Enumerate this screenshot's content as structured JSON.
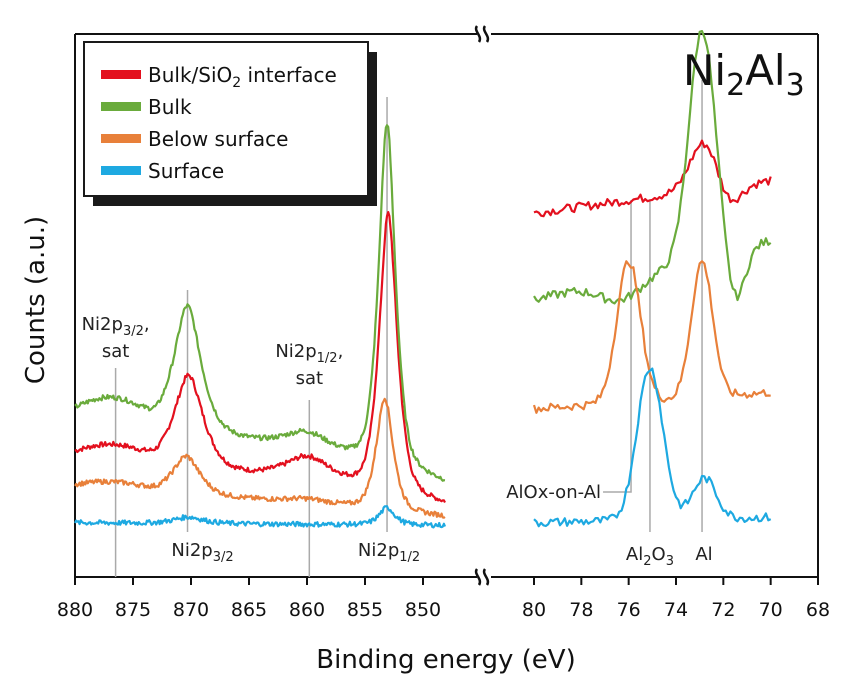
{
  "chart_data": {
    "type": "line",
    "title": "Ni2Al3",
    "title_parts": {
      "base1": "Ni",
      "sub1": "2",
      "base2": "Al",
      "sub2": "3"
    },
    "xlabel": "Binding energy (eV)",
    "ylabel": "Counts (a.u.)",
    "ylim": [
      0,
      100
    ],
    "grid": false,
    "legend_position": "top-left",
    "panels": [
      {
        "name": "Ni2p",
        "xlim": [
          880,
          848
        ],
        "axis_range": [
          880,
          850
        ],
        "ticks": [
          880,
          875,
          870,
          865,
          860,
          855,
          850
        ],
        "tick_labels": [
          "880",
          "875",
          "870",
          "865",
          "860",
          "855",
          "850"
        ],
        "reference_lines": [
          {
            "x": 876.5,
            "label_main": "Ni2p",
            "label_sub": "3/2",
            "label_suffix": ",",
            "label_line2": "sat",
            "position": "top"
          },
          {
            "x": 870.3,
            "label_main": "Ni2p",
            "label_sub": "3/2",
            "position": "bottom"
          },
          {
            "x": 859.8,
            "label_main": "Ni2p",
            "label_sub": "1/2",
            "label_suffix": ",",
            "label_line2": "sat",
            "position": "top"
          },
          {
            "x": 853.1,
            "label_main": "Ni2p",
            "label_sub": "1/2",
            "position": "bottom"
          }
        ]
      },
      {
        "name": "Al2p",
        "xlim": [
          80,
          70
        ],
        "axis_range": [
          80,
          68
        ],
        "ticks": [
          80,
          78,
          76,
          74,
          72,
          70,
          68
        ],
        "tick_labels": [
          "80",
          "78",
          "76",
          "74",
          "72",
          "70",
          "68"
        ],
        "reference_lines": [
          {
            "x": 75.9,
            "label_main": "AlOx-on-Al",
            "position": "left-elbow"
          },
          {
            "x": 75.1,
            "label_main": "Al",
            "label_sub": "2",
            "label_main2": "O",
            "label_sub2": "3",
            "position": "bottom"
          },
          {
            "x": 72.9,
            "label_main": "Al",
            "position": "bottom"
          }
        ]
      }
    ],
    "series": [
      {
        "name": "Bulk/SiO2 interface",
        "legend_main": "Bulk/SiO",
        "legend_sub": "2",
        "legend_suffix": " interface",
        "color": "#e3101e",
        "ni2p": {
          "baseline_start": 23,
          "baseline_end": 13,
          "peaks": [
            {
              "x": 870.2,
              "height": 17,
              "width": 1.3
            },
            {
              "x": 859.9,
              "height": 5,
              "width": 2.2
            },
            {
              "x": 853.0,
              "height": 52,
              "width": 0.8
            }
          ],
          "slope_bg": [
            {
              "from": 880,
              "to": 873,
              "value": 2
            }
          ]
        },
        "al2p": {
          "baseline_start": 67,
          "baseline_end": 73,
          "peaks": [
            {
              "x": 72.8,
              "height": 9,
              "width": 0.6
            }
          ],
          "dips": [
            {
              "x": 71.8,
              "depth": 4,
              "width": 0.5
            }
          ]
        }
      },
      {
        "name": "Bulk",
        "legend_main": "Bulk",
        "color": "#6aab3c",
        "ni2p": {
          "baseline_start": 31,
          "baseline_end": 17,
          "peaks": [
            {
              "x": 870.3,
              "height": 23,
              "width": 1.2
            },
            {
              "x": 860.0,
              "height": 4,
              "width": 2.2
            },
            {
              "x": 853.1,
              "height": 64,
              "width": 0.75
            }
          ],
          "slope_bg": [
            {
              "from": 880,
              "to": 873,
              "value": 3
            }
          ]
        },
        "al2p": {
          "baseline_start": 51,
          "baseline_end": 62,
          "peaks": [
            {
              "x": 72.9,
              "height": 42,
              "width": 0.55
            }
          ],
          "dips": [
            {
              "x": 76.3,
              "depth": 4,
              "width": 0.9
            },
            {
              "x": 71.5,
              "depth": 10,
              "width": 0.4
            }
          ]
        }
      },
      {
        "name": "Below surface",
        "legend_main": "Below surface",
        "color": "#e8803a",
        "ni2p": {
          "baseline_start": 17,
          "baseline_end": 11,
          "peaks": [
            {
              "x": 870.4,
              "height": 7,
              "width": 1.2
            },
            {
              "x": 860.0,
              "height": 1,
              "width": 2.2
            },
            {
              "x": 853.3,
              "height": 21,
              "width": 0.75
            }
          ],
          "slope_bg": [
            {
              "from": 880,
              "to": 873,
              "value": 1
            }
          ]
        },
        "al2p": {
          "baseline_start": 31,
          "baseline_end": 34,
          "peaks": [
            {
              "x": 76.0,
              "height": 26,
              "width": 0.5
            },
            {
              "x": 72.9,
              "height": 25,
              "width": 0.45
            }
          ],
          "dips": []
        }
      },
      {
        "name": "Surface",
        "legend_main": "Surface",
        "color": "#1ea9e1",
        "ni2p": {
          "baseline_start": 10,
          "baseline_end": 9.5,
          "peaks": [
            {
              "x": 870.2,
              "height": 1.2,
              "width": 1.3
            },
            {
              "x": 853.1,
              "height": 3.2,
              "width": 0.7
            }
          ],
          "slope_bg": []
        },
        "al2p": {
          "baseline_start": 10,
          "baseline_end": 11,
          "peaks": [
            {
              "x": 75.1,
              "height": 28,
              "width": 0.55
            },
            {
              "x": 72.8,
              "height": 7.5,
              "width": 0.5
            }
          ],
          "dips": []
        }
      }
    ]
  }
}
